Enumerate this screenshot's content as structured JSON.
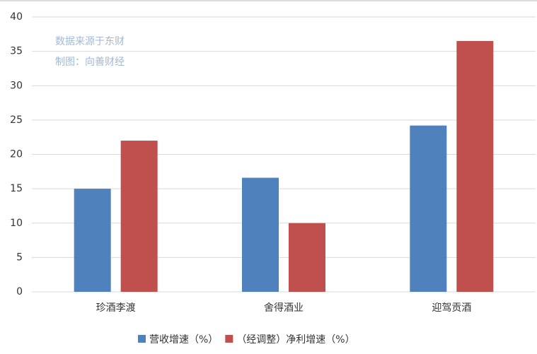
{
  "chart_data": {
    "type": "bar",
    "categories": [
      "珍酒李渡",
      "舍得酒业",
      "迎驾贡酒"
    ],
    "series": [
      {
        "name": "营收增速（%）",
        "color": "#4f81bd",
        "values": [
          15,
          16.6,
          24.2
        ]
      },
      {
        "name": "（经调整）净利增速（%）",
        "color": "#c0504d",
        "values": [
          22,
          10,
          36.5
        ]
      }
    ],
    "annotations": [
      "数据来源于东财",
      "制图：向善财经"
    ],
    "ylim": [
      0,
      40
    ],
    "yticks": [
      0,
      5,
      10,
      15,
      20,
      25,
      30,
      35,
      40
    ],
    "grid": true
  }
}
